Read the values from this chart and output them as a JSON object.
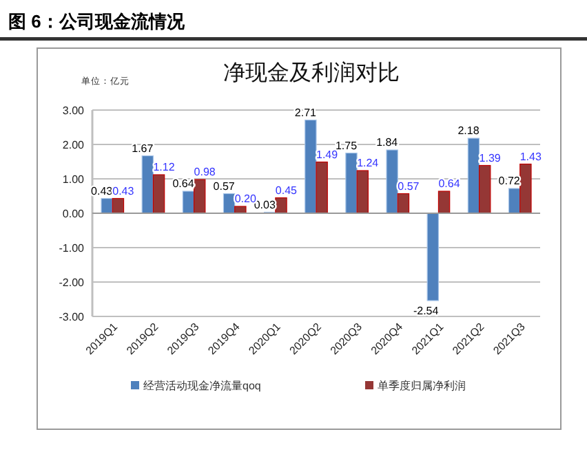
{
  "chart_data": {
    "type": "bar",
    "title": "净现金及利润对比",
    "annotations": [
      "图 6：公司现金流情况",
      "单位：亿元"
    ],
    "categories": [
      "2019Q1",
      "2019Q2",
      "2019Q3",
      "2019Q4",
      "2020Q1",
      "2020Q2",
      "2020Q3",
      "2020Q4",
      "2021Q1",
      "2021Q2",
      "2021Q3"
    ],
    "series": [
      {
        "name": "经营活动现金净流量qoq",
        "color": "#4f81bd",
        "values": [
          0.43,
          1.67,
          0.64,
          0.57,
          0.03,
          2.71,
          1.75,
          1.84,
          -2.54,
          2.18,
          0.72
        ],
        "value_labels": [
          "0.43",
          "1.67",
          "0.64",
          "0.57",
          "0.03",
          "2.71",
          "1.75",
          "1.84",
          "-2.54",
          "2.18",
          "0.72"
        ]
      },
      {
        "name": "单季度归属净利润",
        "color": "#953735",
        "values": [
          0.43,
          1.12,
          0.98,
          0.2,
          0.45,
          1.49,
          1.24,
          0.57,
          0.64,
          1.39,
          1.43
        ],
        "value_labels": [
          "0.43",
          "1.12",
          "0.98",
          "0.20",
          "0.45",
          "1.49",
          "1.24",
          "0.57",
          "0.64",
          "1.39",
          "1.43"
        ]
      }
    ],
    "ylim": [
      -3,
      3
    ],
    "yticks": [
      {
        "value": -3,
        "label": "-3.00"
      },
      {
        "value": -2,
        "label": "-2.00"
      },
      {
        "value": -1,
        "label": "-1.00"
      },
      {
        "value": 0,
        "label": "0.00"
      },
      {
        "value": 1,
        "label": "1.00"
      },
      {
        "value": 2,
        "label": "2.00"
      },
      {
        "value": 3,
        "label": "3.00"
      }
    ],
    "grid": "y",
    "legend": "bottom"
  }
}
